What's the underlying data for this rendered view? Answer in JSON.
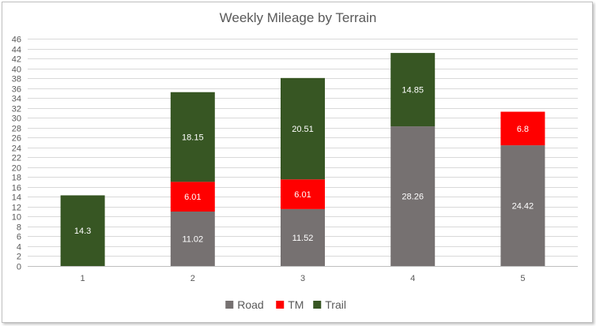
{
  "chart_data": {
    "type": "bar",
    "stacked": true,
    "title": "Weekly Mileage by Terrain",
    "xlabel": "",
    "ylabel": "",
    "categories": [
      "1",
      "2",
      "3",
      "4",
      "5"
    ],
    "series": [
      {
        "name": "Road",
        "color": "#767171",
        "values": [
          0,
          11.02,
          11.52,
          28.26,
          24.42
        ]
      },
      {
        "name": "TM",
        "color": "#ff0000",
        "values": [
          0,
          6.01,
          6.01,
          0,
          6.8
        ]
      },
      {
        "name": "Trail",
        "color": "#375623",
        "values": [
          14.3,
          18.15,
          20.51,
          14.85,
          0
        ]
      }
    ],
    "ylim": [
      0,
      46
    ],
    "yticks": [
      0,
      2,
      4,
      6,
      8,
      10,
      12,
      14,
      16,
      18,
      20,
      22,
      24,
      26,
      28,
      30,
      32,
      34,
      36,
      38,
      40,
      42,
      44,
      46
    ],
    "grid": true,
    "legend_position": "bottom"
  }
}
